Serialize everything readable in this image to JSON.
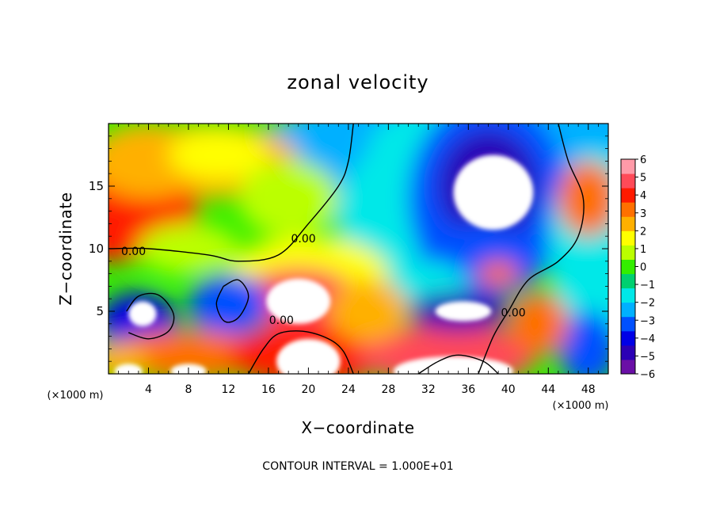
{
  "chart_data": {
    "type": "heatmap",
    "title": "zonal velocity",
    "xlabel": "X−coordinate",
    "ylabel": "Z−coordinate",
    "x_unit_label": "(×1000 m)",
    "z_unit_label": "(×1000 m)",
    "xlim": [
      0,
      50
    ],
    "ylim": [
      0,
      20
    ],
    "x_ticks": [
      "4",
      "8",
      "12",
      "16",
      "20",
      "24",
      "28",
      "32",
      "36",
      "40",
      "44",
      "48"
    ],
    "y_ticks": [
      "5",
      "10",
      "15"
    ],
    "colorbar": {
      "min": -6,
      "max": 6,
      "ticks": [
        "6",
        "5",
        "4",
        "3",
        "2",
        "1",
        "0",
        "−1",
        "−2",
        "−3",
        "−4",
        "−5",
        "−6"
      ],
      "colors": [
        "#6a0fa6",
        "#2b00b5",
        "#0000e6",
        "#0050ff",
        "#00b0ff",
        "#00e8e8",
        "#00d070",
        "#33ee00",
        "#bbff00",
        "#ffff00",
        "#ffb000",
        "#ff7000",
        "#ff1a00",
        "#ff4a58",
        "#ff9aa8"
      ]
    },
    "contour_label": "0.00",
    "footer": "CONTOUR INTERVAL = 1.000E+01",
    "regions": [
      {
        "x": 44,
        "z": 17,
        "rx": 30,
        "rz": 7,
        "v": -2.5
      },
      {
        "x": 34,
        "z": 18,
        "rx": 8,
        "rz": 3.5,
        "v": -1.5
      },
      {
        "x": 30,
        "z": 12,
        "rx": 7,
        "rz": 7,
        "v": -1.5
      },
      {
        "x": 38,
        "z": 14,
        "rx": 8,
        "rz": 8,
        "v": -3.5
      },
      {
        "x": 38,
        "z": 15,
        "rx": 5,
        "rz": 4.5,
        "v": -5
      },
      {
        "x": 37,
        "z": 9,
        "rx": 6,
        "rz": 3,
        "v": -3
      },
      {
        "x": 49,
        "z": 10,
        "rx": 5,
        "rz": 8,
        "v": -2
      },
      {
        "x": 48,
        "z": 2,
        "rx": 3,
        "rz": 3,
        "v": -3
      },
      {
        "x": 32,
        "z": 7,
        "rx": 4,
        "rz": 2,
        "v": -2
      },
      {
        "x": 10,
        "z": 17,
        "rx": 9,
        "rz": 3,
        "v": 2.5
      },
      {
        "x": 1,
        "z": 13,
        "rx": 8,
        "rz": 4,
        "v": 4
      },
      {
        "x": 4,
        "z": 17,
        "rx": 6,
        "rz": 3,
        "v": 2
      },
      {
        "x": 11,
        "z": 17.5,
        "rx": 5,
        "rz": 2,
        "v": 1.5
      },
      {
        "x": 18,
        "z": 14,
        "rx": 5,
        "rz": 3,
        "v": 1
      },
      {
        "x": 20,
        "z": 8,
        "rx": 8,
        "rz": 3,
        "v": 1.5
      },
      {
        "x": 19,
        "z": 6,
        "rx": 6,
        "rz": 2.5,
        "v": 5
      },
      {
        "x": 3,
        "z": 4,
        "rx": 4,
        "rz": 2.5,
        "v": -4
      },
      {
        "x": 12,
        "z": 5.5,
        "rx": 4,
        "rz": 2.5,
        "v": -3
      },
      {
        "x": 8,
        "z": 1.5,
        "rx": 8,
        "rz": 2,
        "v": 3.5
      },
      {
        "x": 20,
        "z": 1.5,
        "rx": 8,
        "rz": 2.5,
        "v": 4
      },
      {
        "x": 34,
        "z": 1.5,
        "rx": 9,
        "rz": 2.5,
        "v": 5
      },
      {
        "x": 35,
        "z": 5,
        "rx": 5,
        "rz": 1.6,
        "v": -5
      },
      {
        "x": 43,
        "z": 4,
        "rx": 3,
        "rz": 2.5,
        "v": 3
      },
      {
        "x": 39,
        "z": 8,
        "rx": 2,
        "rz": 1,
        "v": 3
      },
      {
        "x": 26,
        "z": 5,
        "rx": 4,
        "rz": 2.5,
        "v": 2
      },
      {
        "x": 48,
        "z": 14,
        "rx": 3,
        "rz": 3,
        "v": 3
      },
      {
        "x": 8,
        "z": 10,
        "rx": 5,
        "rz": 2,
        "v": 1
      },
      {
        "x": 1,
        "z": 1,
        "rx": 3,
        "rz": 1.5,
        "v": 2
      }
    ],
    "contours": [
      [
        [
          24.5,
          20
        ],
        [
          24,
          17
        ],
        [
          23,
          15
        ],
        [
          20,
          12
        ],
        [
          17,
          9.5
        ],
        [
          13,
          9
        ],
        [
          10,
          9.5
        ],
        [
          4,
          10
        ],
        [
          0,
          10
        ]
      ],
      [
        [
          37,
          0
        ],
        [
          38.5,
          3
        ],
        [
          40,
          5
        ],
        [
          42,
          7.5
        ],
        [
          45,
          9
        ],
        [
          47,
          11
        ],
        [
          47.5,
          14
        ],
        [
          46,
          17
        ],
        [
          45,
          20
        ]
      ],
      [
        [
          14,
          0
        ],
        [
          15.5,
          2
        ],
        [
          17,
          3.2
        ],
        [
          19.5,
          3.4
        ],
        [
          22,
          2.8
        ],
        [
          23.5,
          1.8
        ],
        [
          24.5,
          0
        ]
      ],
      [
        [
          31,
          0
        ],
        [
          33,
          1
        ],
        [
          35,
          1.5
        ],
        [
          37.5,
          1
        ],
        [
          39,
          0
        ]
      ],
      [
        [
          2,
          3.3
        ],
        [
          4,
          2.8
        ],
        [
          6,
          3.4
        ],
        [
          6.5,
          4.8
        ],
        [
          5,
          6.3
        ],
        [
          3,
          6.2
        ],
        [
          1.8,
          5
        ]
      ],
      [
        [
          11.5,
          7
        ],
        [
          13,
          7.5
        ],
        [
          14,
          6.2
        ],
        [
          13,
          4.5
        ],
        [
          11.6,
          4.2
        ],
        [
          10.8,
          5.6
        ],
        [
          11.5,
          7
        ]
      ]
    ],
    "contour_labels": [
      {
        "x": 2.5,
        "z": 9.5
      },
      {
        "x": 19.5,
        "z": 10.5
      },
      {
        "x": 17.3,
        "z": 4.0
      },
      {
        "x": 40.5,
        "z": 4.6
      }
    ],
    "voids": [
      {
        "x": 38.5,
        "z": 14.5,
        "rx": 4,
        "rz": 3
      },
      {
        "x": 19,
        "z": 5.8,
        "rx": 3.2,
        "rz": 1.8
      },
      {
        "x": 3.4,
        "z": 4.8,
        "rx": 1.4,
        "rz": 1.0
      },
      {
        "x": 20,
        "z": 1.0,
        "rx": 3.2,
        "rz": 1.8
      },
      {
        "x": 35.5,
        "z": 5,
        "rx": 2.8,
        "rz": 0.8
      },
      {
        "x": 34.5,
        "z": 0.2,
        "rx": 6,
        "rz": 1.2
      },
      {
        "x": 8,
        "z": 0.2,
        "rx": 1.8,
        "rz": 0.6
      },
      {
        "x": 2,
        "z": 0.2,
        "rx": 1.4,
        "rz": 0.6
      }
    ]
  }
}
